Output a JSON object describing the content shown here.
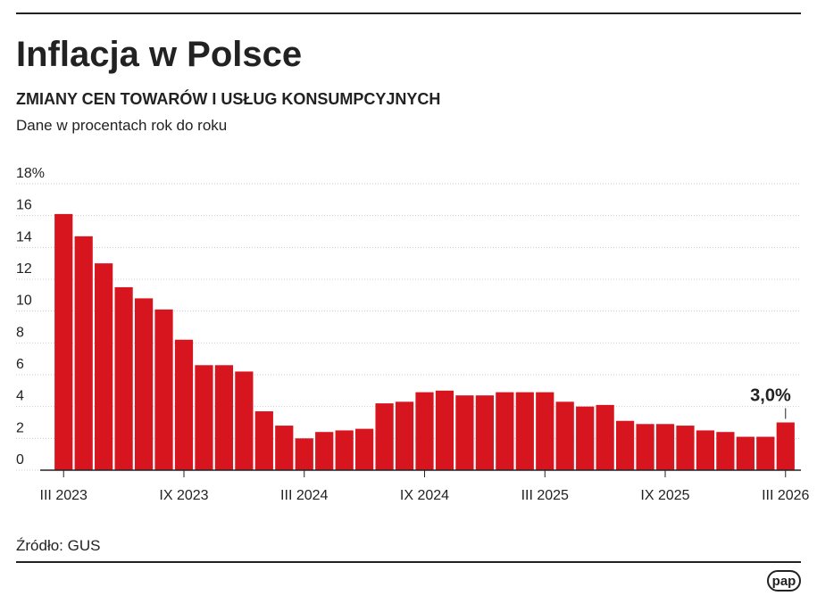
{
  "chart_data": {
    "type": "bar",
    "title": "Inflacja w Polsce",
    "subtitle": "ZMIANY CEN TOWARÓW I USŁUG KONSUMPCYJNYCH",
    "note": "Dane w procentach rok do roku",
    "source": "Źródło: GUS",
    "logo": "pap",
    "categories": [
      "III 2023",
      null,
      null,
      null,
      null,
      null,
      "IX 2023",
      null,
      null,
      null,
      null,
      null,
      "III 2024",
      null,
      null,
      null,
      null,
      null,
      "IX 2024",
      null,
      null,
      null,
      null,
      null,
      "III 2025",
      null,
      null,
      null,
      null,
      null,
      "IX 2025",
      null,
      null,
      null,
      null,
      null,
      "III 2026"
    ],
    "values": [
      16.1,
      14.7,
      13.0,
      11.5,
      10.8,
      10.1,
      8.2,
      6.6,
      6.6,
      6.2,
      3.7,
      2.8,
      2.0,
      2.4,
      2.5,
      2.6,
      4.2,
      4.3,
      4.9,
      5.0,
      4.7,
      4.7,
      4.9,
      4.9,
      4.9,
      4.3,
      4.0,
      4.1,
      3.1,
      2.9,
      2.9,
      2.8,
      2.5,
      2.4,
      2.1,
      2.1,
      3.0
    ],
    "value_labels": [
      null,
      null,
      null,
      null,
      null,
      null,
      null,
      null,
      null,
      null,
      null,
      null,
      null,
      null,
      null,
      null,
      null,
      null,
      null,
      null,
      null,
      null,
      null,
      null,
      null,
      null,
      null,
      null,
      null,
      null,
      null,
      null,
      null,
      null,
      null,
      null,
      "3,0%"
    ],
    "color": "#d7151f",
    "ylim": [
      0,
      18
    ],
    "yticks": [
      0,
      2,
      4,
      6,
      8,
      10,
      12,
      14,
      16,
      {
        "value": 18,
        "label": "18%"
      }
    ],
    "grid": true
  }
}
